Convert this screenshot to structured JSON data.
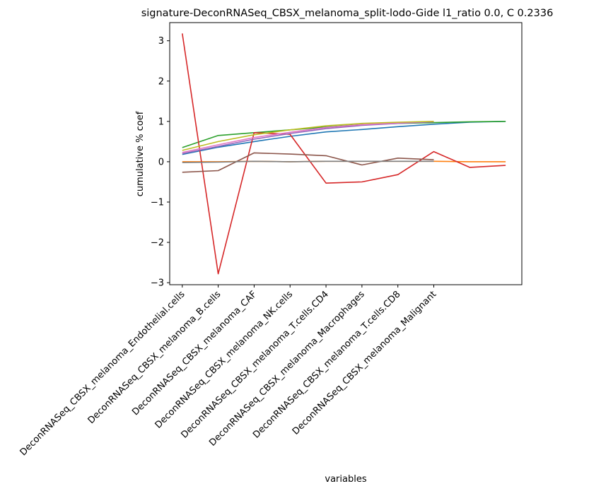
{
  "chart_data": {
    "type": "line",
    "title": "signature-DeconRNASeq_CBSX_melanoma_split-lodo-Gide l1_ratio 0.0, C 0.2336",
    "xlabel": "variables",
    "ylabel": "cumulative % coef",
    "categories": [
      "DeconRNASeq_CBSX_melanoma_Endothelial.cells",
      "DeconRNASeq_CBSX_melanoma_B.cells",
      "DeconRNASeq_CBSX_melanoma_CAF",
      "DeconRNASeq_CBSX_melanoma_NK.cells",
      "DeconRNASeq_CBSX_melanoma_T.cells.CD4",
      "DeconRNASeq_CBSX_melanoma_Macrophages",
      "DeconRNASeq_CBSX_melanoma_T.cells.CD8",
      "DeconRNASeq_CBSX_melanoma_Malignant"
    ],
    "yticks": [
      "3",
      "2",
      "1",
      "0",
      "−1",
      "−2",
      "−3"
    ],
    "ylim": [
      -3.05,
      3.45
    ],
    "xlim": [
      -0.35,
      9.45
    ],
    "grid": false,
    "series": [
      {
        "color": "#1f77b4",
        "x": [
          0,
          1,
          2,
          3,
          4,
          5,
          6,
          7,
          8,
          9
        ],
        "values": [
          0.18,
          0.36,
          0.5,
          0.63,
          0.74,
          0.8,
          0.87,
          0.93,
          0.98,
          1.0
        ]
      },
      {
        "color": "#ff7f0e",
        "x": [
          0,
          1,
          2,
          3,
          4,
          5,
          6,
          7,
          8,
          9
        ],
        "values": [
          0.0,
          0.0,
          0.01,
          0.0,
          0.01,
          0.01,
          0.01,
          0.01,
          0.0,
          0.0
        ]
      },
      {
        "color": "#2ca02c",
        "x": [
          0,
          1,
          2,
          3,
          4,
          5,
          6,
          7,
          8,
          9
        ],
        "values": [
          0.35,
          0.65,
          0.72,
          0.79,
          0.86,
          0.92,
          0.95,
          0.97,
          0.99,
          1.0
        ]
      },
      {
        "color": "#d62728",
        "x": [
          0,
          1,
          2,
          3,
          4,
          5,
          6,
          7,
          8,
          9
        ],
        "values": [
          3.18,
          -2.78,
          0.72,
          0.68,
          -0.53,
          -0.5,
          -0.32,
          0.25,
          -0.14,
          -0.09
        ]
      },
      {
        "color": "#9467bd",
        "x": [
          0,
          1,
          2,
          3,
          4,
          5,
          6,
          7
        ],
        "values": [
          0.2,
          0.38,
          0.56,
          0.7,
          0.82,
          0.9,
          0.95,
          0.99
        ]
      },
      {
        "color": "#8c564b",
        "x": [
          0,
          1,
          2,
          3,
          4,
          5,
          6,
          7
        ],
        "values": [
          -0.26,
          -0.22,
          0.22,
          0.19,
          0.15,
          -0.08,
          0.09,
          0.05
        ]
      },
      {
        "color": "#e377c2",
        "x": [
          0,
          1,
          2,
          3,
          4,
          5,
          6,
          7
        ],
        "values": [
          0.23,
          0.42,
          0.6,
          0.73,
          0.85,
          0.92,
          0.96,
          1.0
        ]
      },
      {
        "color": "#7f7f7f",
        "x": [
          0,
          1,
          2,
          3,
          4,
          5,
          6,
          7
        ],
        "values": [
          -0.02,
          -0.01,
          0.01,
          0.0,
          0.01,
          0.01,
          0.01,
          0.01
        ]
      },
      {
        "color": "#bcbd22",
        "x": [
          0,
          1,
          2,
          3,
          4,
          5,
          6,
          7
        ],
        "values": [
          0.28,
          0.5,
          0.67,
          0.79,
          0.89,
          0.95,
          0.98,
          1.0
        ]
      }
    ]
  }
}
